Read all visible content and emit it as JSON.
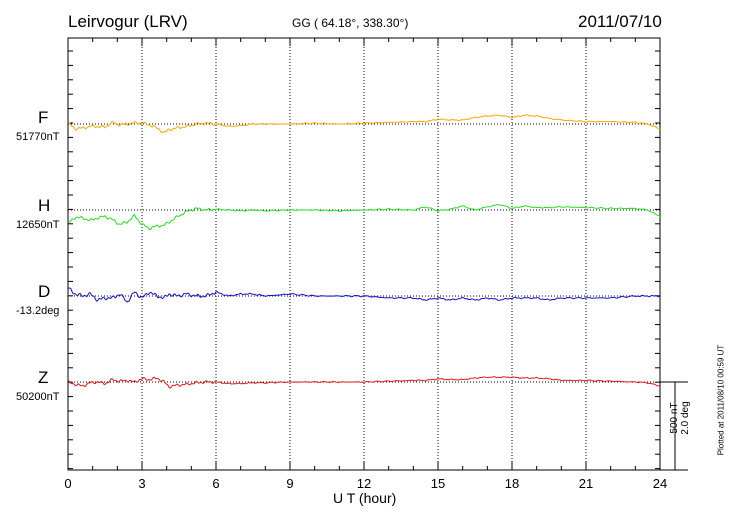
{
  "header": {
    "title": "Leirvogur (LRV)",
    "coords": "GG ( 64.18°, 338.30°)",
    "date": "2011/07/10"
  },
  "channels": [
    {
      "label": "F",
      "baseline": "51770nT",
      "color": "#f5a800"
    },
    {
      "label": "H",
      "baseline": "12650nT",
      "color": "#22dd22"
    },
    {
      "label": "D",
      "baseline": "-13.2deg",
      "color": "#1010d0"
    },
    {
      "label": "Z",
      "baseline": "50200nT",
      "color": "#e01818"
    }
  ],
  "scale_bar": {
    "line1": "500 nT",
    "line2": "2.0 deg"
  },
  "footer": {
    "plotted": "Plotted at 2011/08/10 00:59 UT"
  },
  "chart_data": {
    "type": "line",
    "title": "Leirvogur (LRV)",
    "xlabel": "U T (hour)",
    "ylabel": "",
    "xlim": [
      0,
      24
    ],
    "xticks": [
      0,
      3,
      6,
      9,
      12,
      15,
      18,
      21,
      24
    ],
    "grid": "dotted vertical lines every 3 hours",
    "units_note": "offsets from each channel's printed baseline; scale bar = 500 nT / 2.0 deg",
    "series": [
      {
        "name": "F",
        "unit": "nT",
        "baseline": 51770,
        "x": [
          0,
          0.3,
          0.6,
          0.9,
          1.2,
          1.5,
          1.8,
          2.1,
          2.4,
          2.7,
          3.0,
          3.3,
          3.6,
          3.9,
          4.1,
          4.4,
          4.8,
          5.2,
          5.6,
          6.0,
          6.5,
          7.0,
          7.5,
          8,
          9,
          10,
          11,
          12,
          13,
          14,
          14.5,
          15,
          15.5,
          16,
          16.5,
          17,
          17.5,
          18,
          18.5,
          19,
          19.5,
          20,
          21,
          22,
          23,
          23.5,
          24
        ],
        "y": [
          10,
          -60,
          -50,
          -30,
          -30,
          -40,
          20,
          -10,
          0,
          15,
          10,
          -10,
          -50,
          -110,
          -70,
          -50,
          -30,
          0,
          10,
          0,
          -30,
          -20,
          0,
          0,
          0,
          10,
          0,
          10,
          20,
          30,
          30,
          60,
          50,
          50,
          80,
          100,
          110,
          80,
          110,
          100,
          70,
          50,
          30,
          30,
          20,
          0,
          -60
        ]
      },
      {
        "name": "H",
        "unit": "nT",
        "baseline": 12650,
        "x": [
          0,
          0.3,
          0.6,
          0.9,
          1.2,
          1.5,
          1.8,
          2.1,
          2.4,
          2.7,
          3.0,
          3.3,
          3.6,
          3.9,
          4.1,
          4.4,
          4.8,
          5.2,
          5.6,
          6.0,
          6.5,
          7.0,
          7.5,
          8,
          9,
          10,
          11,
          12,
          13,
          14,
          14.5,
          15,
          15.5,
          16,
          16.5,
          17,
          17.5,
          18,
          18.5,
          19,
          19.5,
          20,
          21,
          22,
          23,
          23.5,
          24
        ],
        "y": [
          -170,
          -90,
          -100,
          -130,
          -100,
          -80,
          -120,
          -180,
          -150,
          -70,
          -180,
          -230,
          -200,
          -190,
          -150,
          -90,
          -20,
          20,
          0,
          10,
          0,
          -10,
          0,
          -10,
          0,
          0,
          -10,
          0,
          10,
          0,
          40,
          -10,
          10,
          50,
          0,
          40,
          70,
          20,
          50,
          30,
          30,
          40,
          30,
          20,
          20,
          0,
          -80
        ]
      },
      {
        "name": "D",
        "unit": "deg",
        "baseline": -13.2,
        "x": [
          0,
          0.3,
          0.6,
          0.9,
          1.2,
          1.5,
          1.8,
          2.1,
          2.4,
          2.7,
          3.0,
          3.3,
          3.6,
          3.9,
          4.1,
          4.4,
          4.8,
          5.2,
          5.6,
          6.0,
          6.5,
          7.0,
          7.5,
          8,
          9,
          10,
          11,
          12,
          13,
          14,
          14.5,
          15,
          15.5,
          16,
          16.5,
          17,
          17.5,
          18,
          18.5,
          19,
          19.5,
          20,
          21,
          22,
          23,
          23.5,
          24
        ],
        "y": [
          0.4,
          0.1,
          0.0,
          0.1,
          -0.2,
          -0.1,
          -0.1,
          0.1,
          -0.3,
          0.2,
          -0.1,
          0.2,
          0.0,
          -0.1,
          0.1,
          0.0,
          0.1,
          0.0,
          0.0,
          0.2,
          0.0,
          0.1,
          0.1,
          0.0,
          0.1,
          0.0,
          0.0,
          0.0,
          -0.1,
          -0.1,
          -0.2,
          -0.1,
          -0.2,
          -0.1,
          -0.2,
          -0.1,
          -0.2,
          -0.1,
          -0.1,
          -0.1,
          -0.2,
          -0.1,
          -0.1,
          -0.1,
          0.0,
          0.0,
          0.0
        ]
      },
      {
        "name": "Z",
        "unit": "nT",
        "baseline": 50200,
        "x": [
          0,
          0.3,
          0.6,
          0.9,
          1.2,
          1.5,
          1.8,
          2.1,
          2.4,
          2.7,
          3.0,
          3.3,
          3.6,
          3.9,
          4.1,
          4.4,
          4.8,
          5.2,
          5.6,
          6.0,
          6.5,
          7.0,
          7.5,
          8,
          9,
          10,
          11,
          12,
          13,
          14,
          14.5,
          15,
          15.5,
          16,
          16.5,
          17,
          17.5,
          18,
          18.5,
          19,
          19.5,
          20,
          21,
          22,
          23,
          23.5,
          24
        ],
        "y": [
          0,
          -30,
          -50,
          -10,
          0,
          -20,
          30,
          10,
          20,
          0,
          40,
          30,
          50,
          0,
          -60,
          -40,
          -30,
          -10,
          0,
          0,
          -20,
          -20,
          -10,
          -10,
          0,
          0,
          0,
          0,
          10,
          20,
          20,
          40,
          30,
          30,
          50,
          60,
          60,
          60,
          50,
          50,
          40,
          20,
          20,
          10,
          0,
          -10,
          -50
        ]
      }
    ]
  }
}
